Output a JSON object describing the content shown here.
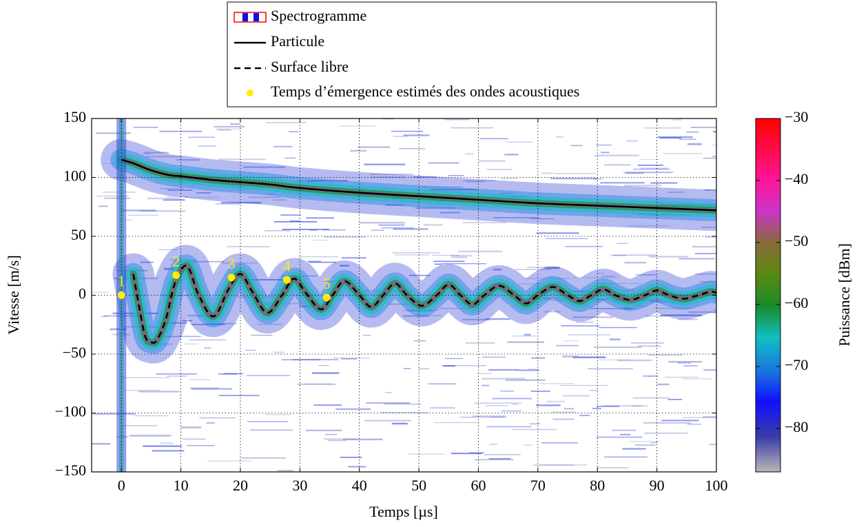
{
  "chart_data": {
    "type": "spectrogram-lines",
    "xlabel": "Temps [µs]",
    "ylabel": "Vitesse [m/s]",
    "xlim": [
      -5,
      100
    ],
    "ylim": [
      -150,
      150
    ],
    "xticks": [
      0,
      10,
      20,
      30,
      40,
      50,
      60,
      70,
      80,
      90,
      100
    ],
    "yticks": [
      {
        "value": -150,
        "label": "−150"
      },
      {
        "value": -100,
        "label": "−100"
      },
      {
        "value": -50,
        "label": "−50"
      },
      0,
      50,
      100,
      150
    ],
    "grid": true,
    "spectrogram": {
      "name": "Spectrogramme"
    },
    "series": [
      {
        "name": "Particule",
        "color": "#000000",
        "dash": false,
        "x": [
          0,
          2,
          5,
          8,
          10,
          15,
          20,
          25,
          30,
          40,
          50,
          60,
          70,
          80,
          90,
          100
        ],
        "values": [
          115,
          112,
          106,
          102,
          101,
          98,
          96,
          94,
          91,
          87,
          84,
          81,
          78,
          76,
          74,
          72
        ]
      },
      {
        "name": "Surface libre",
        "color": "#000000",
        "dash": true,
        "x": [
          2,
          3,
          4,
          5,
          6,
          7.5,
          9,
          11,
          13,
          15.5,
          18,
          20,
          22,
          24.5,
          27,
          29,
          31,
          33.5,
          35.5,
          37.5,
          40,
          42,
          44,
          46,
          48,
          50.5,
          53,
          55,
          57,
          59,
          61,
          63.5,
          66,
          68,
          70,
          72.5,
          75,
          77,
          79,
          81,
          83,
          85.5,
          88,
          90,
          92,
          94.5,
          97,
          99,
          100
        ],
        "values": [
          18,
          -10,
          -35,
          -40,
          -38,
          -20,
          10,
          25,
          0,
          -18,
          5,
          18,
          3,
          -15,
          0,
          14,
          2,
          -12,
          0,
          12,
          0,
          -10,
          0,
          10,
          0,
          -9,
          0,
          9,
          0,
          -8,
          0,
          8,
          0,
          -7,
          0,
          7,
          0,
          -5,
          0,
          5,
          0,
          -4,
          0,
          4,
          0,
          -3,
          0,
          3,
          2
        ]
      }
    ],
    "points": {
      "name": "Temps d’émergence estimés des ondes acoustiques",
      "color": "#ffee00",
      "x": [
        0,
        9.2,
        18.5,
        27.8,
        34.5
      ],
      "values": [
        0,
        17,
        15,
        13,
        -2
      ],
      "labels": [
        "1",
        "2",
        "3",
        "4",
        "5"
      ]
    },
    "colorbar": {
      "label": "Puissance [dBm]",
      "lim": [
        -87,
        -30
      ],
      "ticks": [
        {
          "value": -30,
          "label": "−30"
        },
        {
          "value": -40,
          "label": "−40"
        },
        {
          "value": -50,
          "label": "−50"
        },
        {
          "value": -60,
          "label": "−60"
        },
        {
          "value": -70,
          "label": "−70"
        },
        {
          "value": -80,
          "label": "−80"
        }
      ]
    }
  }
}
